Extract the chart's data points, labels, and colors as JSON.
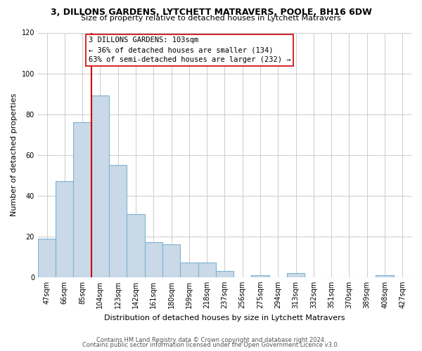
{
  "title1": "3, DILLONS GARDENS, LYTCHETT MATRAVERS, POOLE, BH16 6DW",
  "title2": "Size of property relative to detached houses in Lytchett Matravers",
  "xlabel": "Distribution of detached houses by size in Lytchett Matravers",
  "ylabel": "Number of detached properties",
  "bin_labels": [
    "47sqm",
    "66sqm",
    "85sqm",
    "104sqm",
    "123sqm",
    "142sqm",
    "161sqm",
    "180sqm",
    "199sqm",
    "218sqm",
    "237sqm",
    "256sqm",
    "275sqm",
    "294sqm",
    "313sqm",
    "332sqm",
    "351sqm",
    "370sqm",
    "389sqm",
    "408sqm",
    "427sqm"
  ],
  "bar_heights": [
    19,
    47,
    76,
    89,
    55,
    31,
    17,
    16,
    7,
    7,
    3,
    0,
    1,
    0,
    2,
    0,
    0,
    0,
    0,
    1,
    0
  ],
  "bar_color": "#c9d9e8",
  "bar_edge_color": "#7fb3d3",
  "vline_color": "#cc0000",
  "annotation_text": "3 DILLONS GARDENS: 103sqm\n← 36% of detached houses are smaller (134)\n63% of semi-detached houses are larger (232) →",
  "annotation_box_color": "#ffffff",
  "annotation_box_edge": "#cc0000",
  "ylim": [
    0,
    120
  ],
  "yticks": [
    0,
    20,
    40,
    60,
    80,
    100,
    120
  ],
  "footer1": "Contains HM Land Registry data © Crown copyright and database right 2024.",
  "footer2": "Contains public sector information licensed under the Open Government Licence v3.0.",
  "bg_color": "#ffffff",
  "grid_color": "#cccccc",
  "title1_fontsize": 9,
  "title2_fontsize": 8,
  "ylabel_fontsize": 8,
  "xlabel_fontsize": 8,
  "tick_fontsize": 7,
  "footer_fontsize": 6
}
